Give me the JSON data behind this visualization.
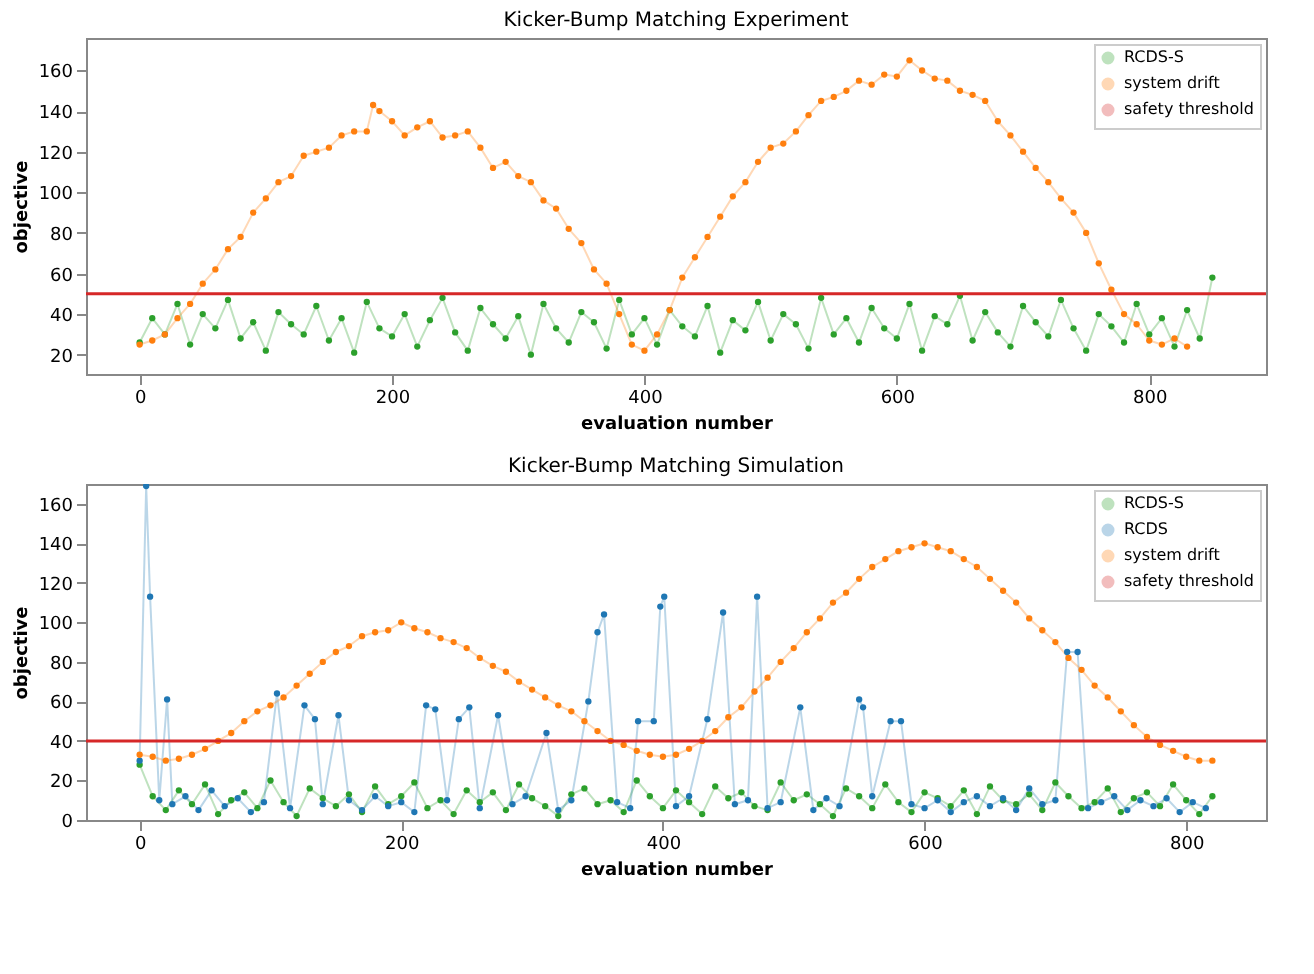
{
  "chart_data": [
    {
      "type": "line",
      "title": "Kicker-Bump Matching Experiment",
      "xlabel": "evaluation number",
      "ylabel": "objective",
      "xlim": [
        -42.5,
        892.5
      ],
      "ylim": [
        10.5,
        176
      ],
      "xticks": [
        0,
        200,
        400,
        600,
        800
      ],
      "yticks": [
        20,
        40,
        60,
        80,
        100,
        120,
        140,
        160
      ],
      "legend": "top right",
      "marker": "circle",
      "series": [
        {
          "name": "RCDS-S",
          "color": "#2ca02c",
          "x": [
            0,
            10,
            20,
            30,
            40,
            50,
            60,
            70,
            80,
            90,
            100,
            110,
            120,
            130,
            140,
            150,
            160,
            170,
            180,
            190,
            200,
            210,
            220,
            230,
            240,
            250,
            260,
            270,
            280,
            290,
            300,
            310,
            320,
            330,
            340,
            350,
            360,
            370,
            380,
            390,
            400,
            410,
            420,
            430,
            440,
            450,
            460,
            470,
            480,
            490,
            500,
            510,
            520,
            530,
            540,
            550,
            560,
            570,
            580,
            590,
            600,
            610,
            620,
            630,
            640,
            650,
            660,
            670,
            680,
            690,
            700,
            710,
            720,
            730,
            740,
            750,
            760,
            770,
            780,
            790,
            800,
            810,
            820,
            830,
            840,
            850
          ],
          "values": [
            26,
            38,
            30,
            45,
            25,
            40,
            33,
            47,
            28,
            36,
            22,
            41,
            35,
            30,
            44,
            27,
            38,
            21,
            46,
            33,
            29,
            40,
            24,
            37,
            48,
            31,
            22,
            43,
            35,
            28,
            39,
            20,
            45,
            33,
            26,
            41,
            36,
            23,
            47,
            30,
            38,
            25,
            42,
            34,
            29,
            44,
            21,
            37,
            32,
            46,
            27,
            40,
            35,
            23,
            48,
            30,
            38,
            26,
            43,
            33,
            28,
            45,
            22,
            39,
            35,
            49,
            27,
            41,
            31,
            24,
            44,
            36,
            29,
            47,
            33,
            22,
            40,
            34,
            26,
            45,
            30,
            38,
            24,
            42,
            28,
            58
          ]
        },
        {
          "name": "system drift",
          "color": "#ff7f0e",
          "x": [
            0,
            10,
            20,
            30,
            40,
            50,
            60,
            70,
            80,
            90,
            100,
            110,
            120,
            130,
            140,
            150,
            160,
            170,
            180,
            185,
            190,
            200,
            210,
            220,
            230,
            240,
            250,
            260,
            270,
            280,
            290,
            300,
            310,
            320,
            330,
            340,
            350,
            360,
            370,
            380,
            390,
            400,
            410,
            420,
            430,
            440,
            450,
            460,
            470,
            480,
            490,
            500,
            510,
            520,
            530,
            540,
            550,
            560,
            570,
            580,
            590,
            600,
            610,
            620,
            630,
            640,
            650,
            660,
            670,
            680,
            690,
            700,
            710,
            720,
            730,
            740,
            750,
            760,
            770,
            780,
            790,
            800,
            810,
            820,
            830
          ],
          "values": [
            25,
            27,
            30,
            38,
            45,
            55,
            62,
            72,
            78,
            90,
            97,
            105,
            108,
            118,
            120,
            122,
            128,
            130,
            130,
            143,
            140,
            135,
            128,
            132,
            135,
            127,
            128,
            130,
            122,
            112,
            115,
            108,
            105,
            96,
            92,
            82,
            75,
            62,
            55,
            40,
            25,
            22,
            30,
            42,
            58,
            68,
            78,
            88,
            98,
            105,
            115,
            122,
            124,
            130,
            138,
            145,
            147,
            150,
            155,
            153,
            158,
            157,
            165,
            160,
            156,
            155,
            150,
            148,
            145,
            135,
            128,
            120,
            112,
            105,
            97,
            90,
            80,
            65,
            52,
            40,
            35,
            27,
            25,
            28,
            24
          ]
        }
      ],
      "ref_lines": [
        {
          "axis": "y",
          "value": 50,
          "label": "safety threshold",
          "color": "#d62728"
        }
      ]
    },
    {
      "type": "line",
      "title": "Kicker-Bump Matching Simulation",
      "xlabel": "evaluation number",
      "ylabel": "objective",
      "xlim": [
        -41,
        861
      ],
      "ylim": [
        0,
        170
      ],
      "xticks": [
        0,
        200,
        400,
        600,
        800
      ],
      "yticks": [
        0,
        20,
        40,
        60,
        80,
        100,
        120,
        140,
        160
      ],
      "legend": "top right",
      "marker": "circle",
      "series": [
        {
          "name": "RCDS-S",
          "color": "#2ca02c",
          "x": [
            0,
            10,
            20,
            30,
            40,
            50,
            60,
            70,
            80,
            90,
            100,
            110,
            120,
            130,
            140,
            150,
            160,
            170,
            180,
            190,
            200,
            210,
            220,
            230,
            240,
            250,
            260,
            270,
            280,
            290,
            300,
            310,
            320,
            330,
            340,
            350,
            360,
            370,
            380,
            390,
            400,
            410,
            420,
            430,
            440,
            450,
            460,
            470,
            480,
            490,
            500,
            510,
            520,
            530,
            540,
            550,
            560,
            570,
            580,
            590,
            600,
            610,
            620,
            630,
            640,
            650,
            660,
            670,
            680,
            690,
            700,
            710,
            720,
            730,
            740,
            750,
            760,
            770,
            780,
            790,
            800,
            810,
            820
          ],
          "values": [
            28,
            12,
            5,
            15,
            8,
            18,
            3,
            10,
            14,
            6,
            20,
            9,
            2,
            16,
            11,
            7,
            13,
            4,
            17,
            8,
            12,
            19,
            6,
            10,
            3,
            15,
            9,
            14,
            5,
            18,
            11,
            7,
            2,
            13,
            16,
            8,
            10,
            4,
            20,
            12,
            6,
            15,
            9,
            3,
            17,
            11,
            14,
            7,
            5,
            19,
            10,
            13,
            8,
            2,
            16,
            12,
            6,
            18,
            9,
            4,
            14,
            11,
            7,
            15,
            3,
            17,
            10,
            8,
            13,
            5,
            19,
            12,
            6,
            9,
            16,
            4,
            11,
            14,
            7,
            18,
            10,
            3,
            12
          ]
        },
        {
          "name": "RCDS",
          "color": "#1f77b4",
          "x": [
            0,
            5,
            8,
            15,
            21,
            25,
            35,
            45,
            55,
            65,
            75,
            85,
            95,
            105,
            115,
            126,
            134,
            140,
            152,
            160,
            170,
            180,
            190,
            200,
            210,
            219,
            226,
            235,
            244,
            252,
            260,
            274,
            285,
            295,
            311,
            320,
            330,
            343,
            350,
            355,
            365,
            375,
            381,
            393,
            398,
            401,
            410,
            420,
            434,
            446,
            455,
            465,
            472,
            480,
            490,
            505,
            515,
            525,
            535,
            550,
            553,
            560,
            574,
            582,
            590,
            600,
            610,
            620,
            630,
            640,
            650,
            660,
            670,
            680,
            690,
            700,
            709,
            717,
            725,
            735,
            745,
            755,
            765,
            775,
            785,
            795,
            805,
            815
          ],
          "values": [
            30,
            169,
            113,
            10,
            61,
            8,
            12,
            5,
            15,
            7,
            11,
            4,
            9,
            64,
            6,
            58,
            51,
            8,
            53,
            10,
            5,
            12,
            7,
            9,
            4,
            58,
            56,
            10,
            51,
            57,
            6,
            53,
            8,
            12,
            44,
            5,
            10,
            60,
            95,
            104,
            9,
            6,
            50,
            50,
            108,
            113,
            7,
            12,
            51,
            105,
            8,
            10,
            113,
            6,
            9,
            57,
            5,
            11,
            7,
            61,
            57,
            12,
            50,
            50,
            8,
            6,
            10,
            4,
            9,
            12,
            7,
            11,
            5,
            16,
            8,
            10,
            85,
            85,
            6,
            9,
            12,
            5,
            10,
            7,
            11,
            4,
            9,
            6
          ]
        },
        {
          "name": "system drift",
          "color": "#ff7f0e",
          "x": [
            0,
            10,
            20,
            30,
            40,
            50,
            60,
            70,
            80,
            90,
            100,
            110,
            120,
            130,
            140,
            150,
            160,
            170,
            180,
            190,
            200,
            210,
            220,
            230,
            240,
            250,
            260,
            270,
            280,
            290,
            300,
            310,
            320,
            330,
            340,
            350,
            360,
            370,
            380,
            390,
            400,
            410,
            420,
            430,
            440,
            450,
            460,
            470,
            480,
            490,
            500,
            510,
            520,
            530,
            540,
            550,
            560,
            570,
            580,
            590,
            600,
            610,
            620,
            630,
            640,
            650,
            660,
            670,
            680,
            690,
            700,
            710,
            720,
            730,
            740,
            750,
            760,
            770,
            780,
            790,
            800,
            810,
            820
          ],
          "values": [
            33,
            32,
            30,
            31,
            33,
            36,
            40,
            44,
            50,
            55,
            58,
            62,
            68,
            74,
            80,
            85,
            88,
            93,
            95,
            96,
            100,
            97,
            95,
            92,
            90,
            87,
            82,
            78,
            75,
            70,
            66,
            62,
            58,
            55,
            50,
            45,
            40,
            38,
            35,
            33,
            32,
            33,
            36,
            40,
            45,
            52,
            57,
            65,
            72,
            80,
            87,
            95,
            102,
            110,
            115,
            122,
            128,
            132,
            136,
            138,
            140,
            138,
            136,
            132,
            128,
            122,
            116,
            110,
            102,
            96,
            90,
            82,
            76,
            68,
            62,
            55,
            48,
            42,
            38,
            35,
            32,
            30,
            30
          ]
        }
      ],
      "ref_lines": [
        {
          "axis": "y",
          "value": 40,
          "label": "safety threshold",
          "color": "#d62728"
        }
      ]
    }
  ]
}
